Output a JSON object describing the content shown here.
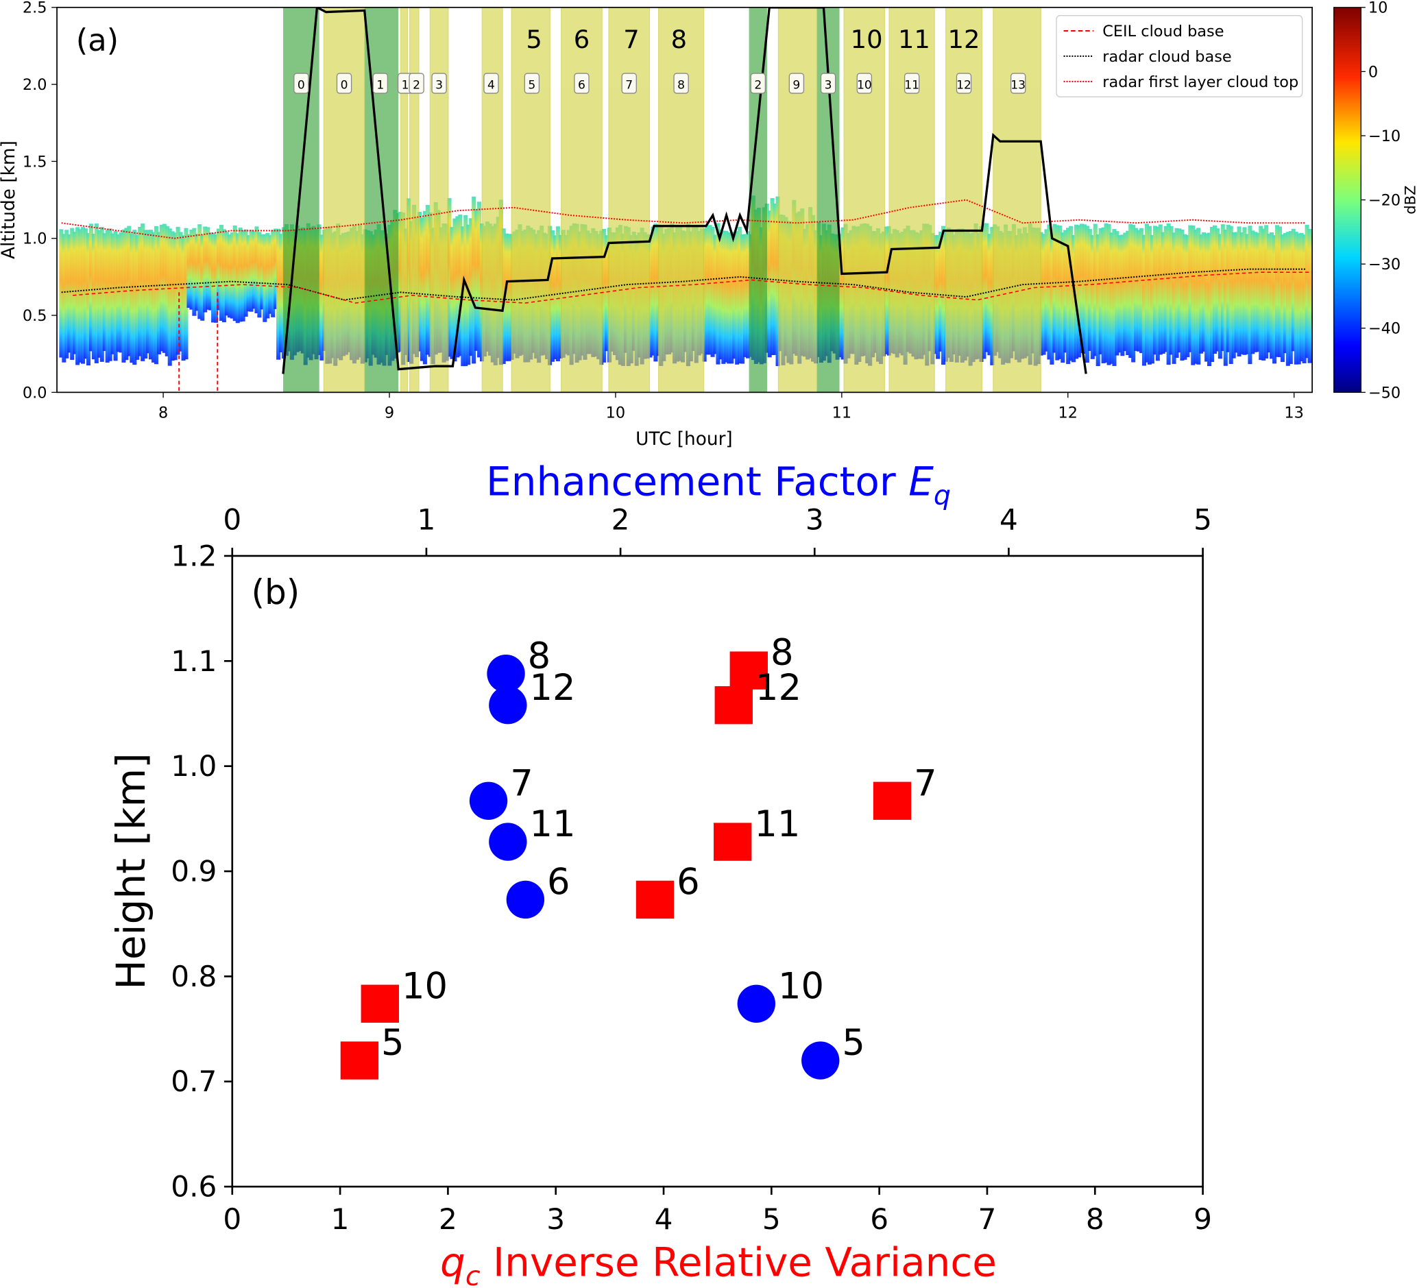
{
  "chart_data": [
    {
      "type": "heatmap",
      "panel_label": "(a)",
      "xlabel": "UTC [hour]",
      "ylabel": "Altitude [km]",
      "xlim": [
        7.53,
        13.08
      ],
      "ylim": [
        0,
        2.5
      ],
      "xticks": [
        8,
        9,
        10,
        11,
        12,
        13
      ],
      "yticks": [
        "0.0",
        "0.5",
        "1.0",
        "1.5",
        "2.0",
        "2.5"
      ],
      "colorbar": {
        "label": "dBZ",
        "range": [
          -50,
          10
        ],
        "ticks": [
          10,
          0,
          -10,
          -20,
          -30,
          -40,
          -50
        ],
        "colormap": "jet"
      },
      "legend": {
        "placement": "top-right",
        "entries": [
          {
            "label": "CEIL cloud base",
            "color": "#ff0000",
            "style": "dashed"
          },
          {
            "label": "radar cloud base",
            "color": "#000000",
            "style": "dotted"
          },
          {
            "label": "radar  first layer cloud top",
            "color": "#ff0000",
            "style": "dotted"
          }
        ]
      },
      "green_spans": [
        [
          8.53,
          8.69
        ],
        [
          8.89,
          9.04
        ],
        [
          10.59,
          10.67
        ],
        [
          10.89,
          10.99
        ]
      ],
      "yellow_spans": [
        [
          8.71,
          8.89
        ],
        [
          9.05,
          9.08
        ],
        [
          9.09,
          9.13
        ],
        [
          9.18,
          9.26
        ],
        [
          9.41,
          9.5
        ],
        [
          9.54,
          9.71
        ],
        [
          9.76,
          9.94
        ],
        [
          9.97,
          10.15
        ],
        [
          10.19,
          10.39
        ],
        [
          10.72,
          10.89
        ],
        [
          11.01,
          11.19
        ],
        [
          11.21,
          11.41
        ],
        [
          11.46,
          11.62
        ],
        [
          11.67,
          11.88
        ]
      ],
      "span_boxes": [
        {
          "t": "0",
          "x": 8.61
        },
        {
          "t": "0",
          "x": 8.8
        },
        {
          "t": "1",
          "x": 8.96
        },
        {
          "t": "1",
          "x": 9.07
        },
        {
          "t": "2",
          "x": 9.12
        },
        {
          "t": "3",
          "x": 9.22
        },
        {
          "t": "4",
          "x": 9.45
        },
        {
          "t": "5",
          "x": 9.63
        },
        {
          "t": "6",
          "x": 9.85
        },
        {
          "t": "7",
          "x": 10.06
        },
        {
          "t": "8",
          "x": 10.29
        },
        {
          "t": "2",
          "x": 10.63
        },
        {
          "t": "9",
          "x": 10.8
        },
        {
          "t": "3",
          "x": 10.94
        },
        {
          "t": "10",
          "x": 11.1
        },
        {
          "t": "11",
          "x": 11.31
        },
        {
          "t": "12",
          "x": 11.54
        },
        {
          "t": "13",
          "x": 11.78
        }
      ],
      "case_labels": [
        {
          "t": "5",
          "x": 9.64
        },
        {
          "t": "6",
          "x": 9.85
        },
        {
          "t": "7",
          "x": 10.07
        },
        {
          "t": "8",
          "x": 10.28
        },
        {
          "t": "10",
          "x": 11.11
        },
        {
          "t": "11",
          "x": 11.32
        },
        {
          "t": "12",
          "x": 11.54
        }
      ],
      "aircraft_track": [
        [
          8.53,
          0.12
        ],
        [
          8.68,
          2.5
        ],
        [
          8.72,
          2.47
        ],
        [
          8.89,
          2.48
        ],
        [
          9.04,
          0.15
        ],
        [
          9.2,
          0.17
        ],
        [
          9.28,
          0.17
        ],
        [
          9.33,
          0.73
        ],
        [
          9.38,
          0.55
        ],
        [
          9.5,
          0.53
        ],
        [
          9.52,
          0.72
        ],
        [
          9.7,
          0.73
        ],
        [
          9.72,
          0.87
        ],
        [
          9.95,
          0.88
        ],
        [
          9.97,
          0.97
        ],
        [
          10.15,
          0.98
        ],
        [
          10.17,
          1.08
        ],
        [
          10.4,
          1.08
        ],
        [
          10.43,
          1.15
        ],
        [
          10.46,
          1.0
        ],
        [
          10.49,
          1.15
        ],
        [
          10.52,
          1.0
        ],
        [
          10.55,
          1.15
        ],
        [
          10.58,
          1.05
        ],
        [
          10.68,
          2.5
        ],
        [
          10.92,
          2.5
        ],
        [
          11.0,
          0.77
        ],
        [
          11.2,
          0.78
        ],
        [
          11.22,
          0.93
        ],
        [
          11.43,
          0.94
        ],
        [
          11.45,
          1.05
        ],
        [
          11.62,
          1.05
        ],
        [
          11.67,
          1.67
        ],
        [
          11.7,
          1.63
        ],
        [
          11.88,
          1.63
        ],
        [
          11.93,
          1.0
        ],
        [
          12.0,
          0.95
        ],
        [
          12.08,
          0.12
        ]
      ],
      "radar_cloud_base": {
        "x0": 7.55,
        "dx": 0.25,
        "y": [
          0.65,
          0.68,
          0.7,
          0.72,
          0.7,
          0.6,
          0.65,
          0.62,
          0.6,
          0.65,
          0.7,
          0.72,
          0.75,
          0.72,
          0.7,
          0.65,
          0.62,
          0.7,
          0.72,
          0.75,
          0.78,
          0.8,
          0.8
        ]
      },
      "radar_cloud_top": {
        "x0": 7.55,
        "dx": 0.25,
        "y": [
          1.1,
          1.05,
          1.0,
          1.05,
          1.05,
          1.08,
          1.12,
          1.18,
          1.2,
          1.15,
          1.12,
          1.1,
          1.12,
          1.1,
          1.12,
          1.2,
          1.25,
          1.1,
          1.12,
          1.1,
          1.12,
          1.1,
          1.1
        ]
      },
      "ceil_dropouts": [
        8.07,
        8.24
      ]
    },
    {
      "type": "scatter",
      "panel_label": "(b)",
      "xlabel": "q_c Inverse Relative Variance",
      "xlabel_main": "q",
      "xlabel_sub": "c",
      "xlabel_rest": " Inverse Relative Variance",
      "x2label_main": "Enhancement Factor ",
      "x2label_italic": "E",
      "x2label_sub": "q",
      "ylabel": "Height [km]",
      "xlim": [
        0,
        9
      ],
      "x2lim": [
        0,
        5
      ],
      "ylim": [
        0.6,
        1.2
      ],
      "xticks": [
        0,
        1,
        2,
        3,
        4,
        5,
        6,
        7,
        8,
        9
      ],
      "x2ticks": [
        0,
        1,
        2,
        3,
        4,
        5
      ],
      "yticks": [
        "0.6",
        "0.7",
        "0.8",
        "0.9",
        "1.0",
        "1.1",
        "1.2"
      ],
      "colors": {
        "qc": "#ff0000",
        "eq": "#0000ff"
      },
      "series": [
        {
          "axis": "bottom",
          "marker": "square",
          "color": "#ff0000",
          "points": [
            {
              "label": "8",
              "x": 4.79,
              "y": 1.091
            },
            {
              "label": "12",
              "x": 4.65,
              "y": 1.058
            },
            {
              "label": "7",
              "x": 6.12,
              "y": 0.967
            },
            {
              "label": "11",
              "x": 4.64,
              "y": 0.928
            },
            {
              "label": "6",
              "x": 3.92,
              "y": 0.873
            },
            {
              "label": "10",
              "x": 1.37,
              "y": 0.774
            },
            {
              "label": "5",
              "x": 1.18,
              "y": 0.72
            }
          ]
        },
        {
          "axis": "top",
          "marker": "circle",
          "color": "#0000ff",
          "points": [
            {
              "label": "8",
              "x": 1.41,
              "y": 1.088
            },
            {
              "label": "12",
              "x": 1.42,
              "y": 1.058
            },
            {
              "label": "7",
              "x": 1.32,
              "y": 0.967
            },
            {
              "label": "11",
              "x": 1.42,
              "y": 0.928
            },
            {
              "label": "6",
              "x": 1.51,
              "y": 0.873
            },
            {
              "label": "10",
              "x": 2.7,
              "y": 0.774
            },
            {
              "label": "5",
              "x": 3.03,
              "y": 0.72
            }
          ]
        }
      ]
    }
  ]
}
